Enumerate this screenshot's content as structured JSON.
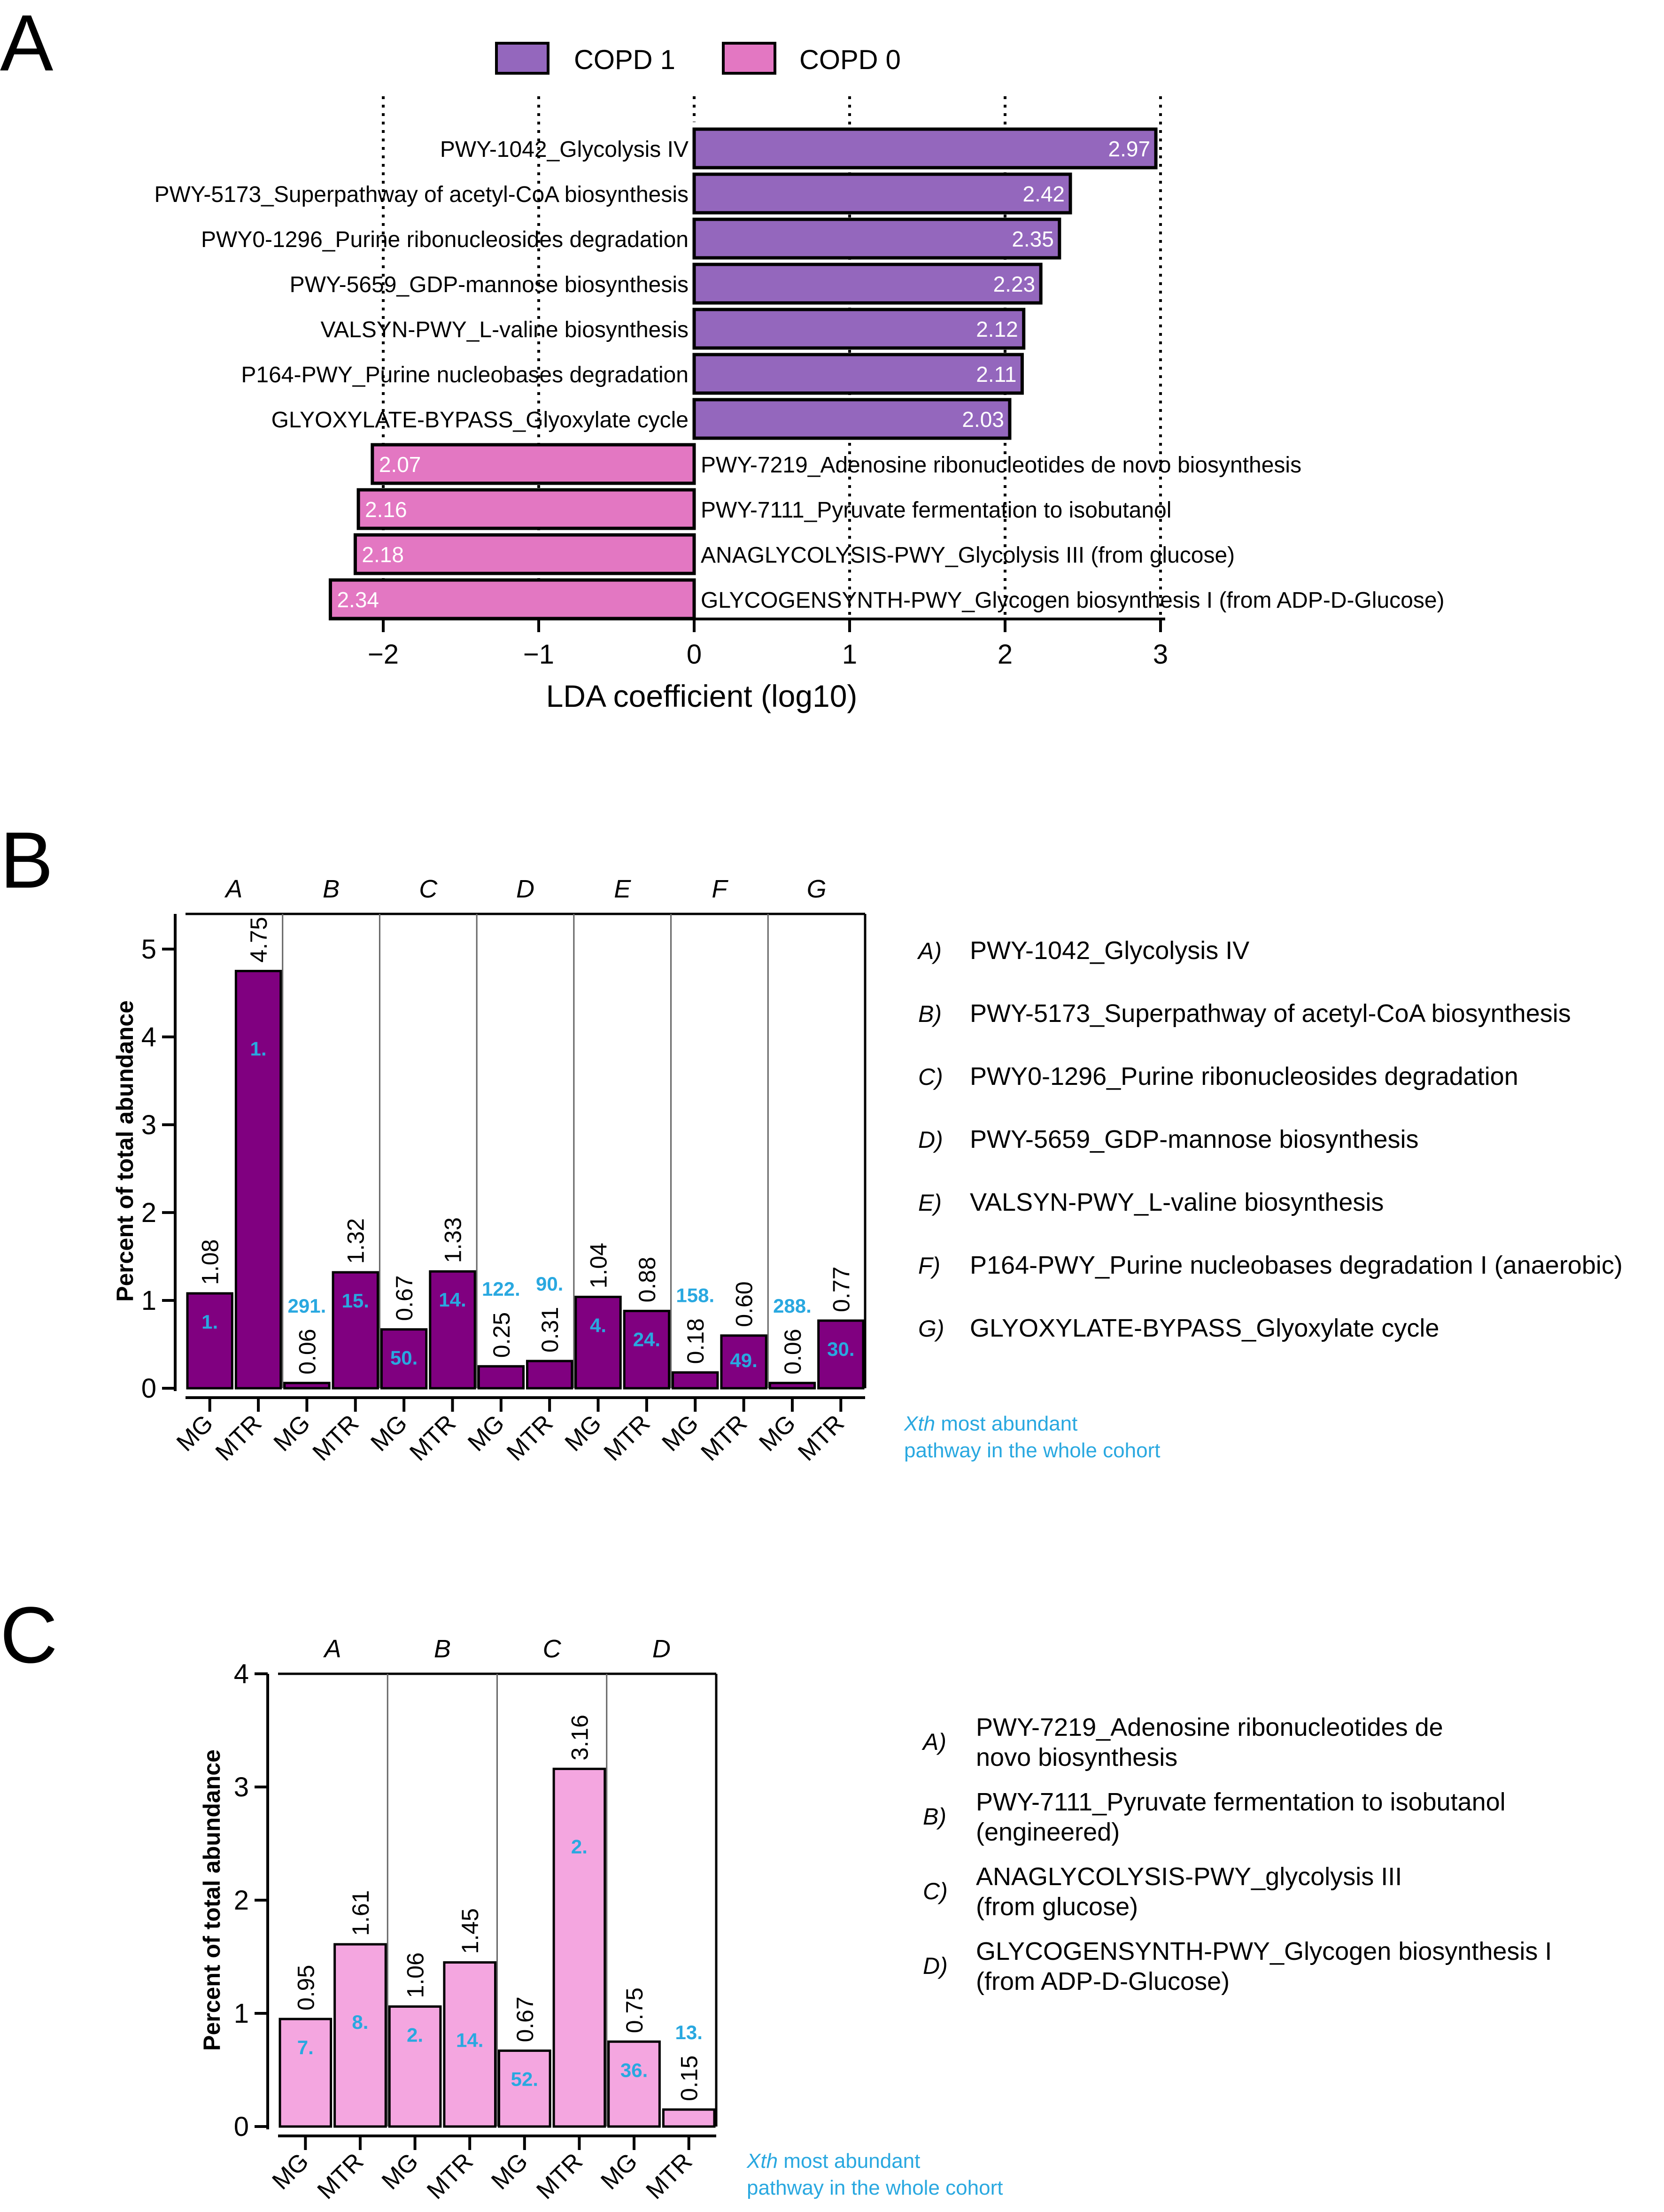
{
  "panels": {
    "a": "A",
    "b": "B",
    "c": "C"
  },
  "colors": {
    "copd1": "#9467bd",
    "copd0": "#e377c2",
    "b_bar": "#800080",
    "c_bar": "#f4a6e0",
    "rank": "#29a8e0",
    "text": "#000000"
  },
  "chart_data": [
    {
      "id": "panel-a",
      "type": "bar",
      "orientation": "horizontal",
      "xlabel": "LDA coefficient (log10)",
      "xlim": [
        -2.4,
        3.1
      ],
      "xticks": [
        -2,
        -1,
        0,
        1,
        2,
        3
      ],
      "xtick_labels": [
        "−2",
        "−1",
        "0",
        "1",
        "2",
        "3"
      ],
      "legend": {
        "position": "top",
        "entries": [
          "COPD 1",
          "COPD 0"
        ]
      },
      "bars": [
        {
          "label": "PWY-1042_Glycolysis IV",
          "value": 2.97,
          "value_label": "2.97",
          "group": "COPD 1"
        },
        {
          "label": "PWY-5173_Superpathway of acetyl-CoA biosynthesis",
          "value": 2.42,
          "value_label": "2.42",
          "group": "COPD 1"
        },
        {
          "label": "PWY0-1296_Purine ribonucleosides degradation",
          "value": 2.35,
          "value_label": "2.35",
          "group": "COPD 1"
        },
        {
          "label": "PWY-5659_GDP-mannose biosynthesis",
          "value": 2.23,
          "value_label": "2.23",
          "group": "COPD 1"
        },
        {
          "label": "VALSYN-PWY_L-valine biosynthesis",
          "value": 2.12,
          "value_label": "2.12",
          "group": "COPD 1"
        },
        {
          "label": "P164-PWY_Purine nucleobases degradation",
          "value": 2.11,
          "value_label": "2.11",
          "group": "COPD 1"
        },
        {
          "label": "GLYOXYLATE-BYPASS_Glyoxylate cycle",
          "value": 2.03,
          "value_label": "2.03",
          "group": "COPD 1"
        },
        {
          "label": "PWY-7219_Adenosine ribonucleotides de novo biosynthesis",
          "value": -2.07,
          "value_label": "2.07",
          "group": "COPD 0"
        },
        {
          "label": "PWY-7111_Pyruvate fermentation to isobutanol",
          "value": -2.16,
          "value_label": "2.16",
          "group": "COPD 0"
        },
        {
          "label": "ANAGLYCOLYSIS-PWY_Glycolysis III (from glucose)",
          "value": -2.18,
          "value_label": "2.18",
          "group": "COPD 0"
        },
        {
          "label": "GLYCOGENSYNTH-PWY_Glycogen biosynthesis I (from ADP-D-Glucose)",
          "value": -2.34,
          "value_label": "2.34",
          "group": "COPD 0"
        }
      ]
    },
    {
      "id": "panel-b",
      "type": "bar",
      "ylabel": "Percent  of total abundance",
      "ylim": [
        0,
        5.4
      ],
      "yticks": [
        0,
        1,
        2,
        3,
        4,
        5
      ],
      "groups": [
        {
          "key": "A",
          "bars": [
            {
              "cat": "MG",
              "value": 1.08,
              "label": "1.08",
              "rank": "1."
            },
            {
              "cat": "MTR",
              "value": 4.75,
              "label": "4.75",
              "rank": "1."
            }
          ]
        },
        {
          "key": "B",
          "bars": [
            {
              "cat": "MG",
              "value": 0.06,
              "label": "0.06",
              "rank": "291."
            },
            {
              "cat": "MTR",
              "value": 1.32,
              "label": "1.32",
              "rank": "15."
            }
          ]
        },
        {
          "key": "C",
          "bars": [
            {
              "cat": "MG",
              "value": 0.67,
              "label": "0.67",
              "rank": "50."
            },
            {
              "cat": "MTR",
              "value": 1.33,
              "label": "1.33",
              "rank": "14."
            }
          ]
        },
        {
          "key": "D",
          "bars": [
            {
              "cat": "MG",
              "value": 0.25,
              "label": "0.25",
              "rank": "122."
            },
            {
              "cat": "MTR",
              "value": 0.31,
              "label": "0.31",
              "rank": "90."
            }
          ]
        },
        {
          "key": "E",
          "bars": [
            {
              "cat": "MG",
              "value": 1.04,
              "label": "1.04",
              "rank": "4."
            },
            {
              "cat": "MTR",
              "value": 0.88,
              "label": "0.88",
              "rank": "24."
            }
          ]
        },
        {
          "key": "F",
          "bars": [
            {
              "cat": "MG",
              "value": 0.18,
              "label": "0.18",
              "rank": "158."
            },
            {
              "cat": "MTR",
              "value": 0.6,
              "label": "0.60",
              "rank": "49."
            }
          ]
        },
        {
          "key": "G",
          "bars": [
            {
              "cat": "MG",
              "value": 0.06,
              "label": "0.06",
              "rank": "288."
            },
            {
              "cat": "MTR",
              "value": 0.77,
              "label": "0.77",
              "rank": "30."
            }
          ]
        }
      ],
      "legend_items": [
        {
          "key": "A)",
          "text": "PWY-1042_Glycolysis IV"
        },
        {
          "key": "B)",
          "text": "PWY-5173_Superpathway of acetyl-CoA biosynthesis"
        },
        {
          "key": "C)",
          "text": "PWY0-1296_Purine ribonucleosides degradation"
        },
        {
          "key": "D)",
          "text": "PWY-5659_GDP-mannose biosynthesis"
        },
        {
          "key": "E)",
          "text": "VALSYN-PWY_L-valine biosynthesis"
        },
        {
          "key": "F)",
          "text": "P164-PWY_Purine nucleobases degradation I (anaerobic)"
        },
        {
          "key": "G)",
          "text": "GLYOXYLATE-BYPASS_Glyoxylate cycle"
        }
      ],
      "note": {
        "italic": "Xth",
        "line1": " most abundant",
        "line2": "pathway in the whole cohort"
      }
    },
    {
      "id": "panel-c",
      "type": "bar",
      "ylabel": "Percent  of total abundance",
      "ylim": [
        0,
        4
      ],
      "yticks": [
        0,
        1,
        2,
        3,
        4
      ],
      "groups": [
        {
          "key": "A",
          "bars": [
            {
              "cat": "MG",
              "value": 0.95,
              "label": "0.95",
              "rank": "7."
            },
            {
              "cat": "MTR",
              "value": 1.61,
              "label": "1.61",
              "rank": "8."
            }
          ]
        },
        {
          "key": "B",
          "bars": [
            {
              "cat": "MG",
              "value": 1.06,
              "label": "1.06",
              "rank": "2."
            },
            {
              "cat": "MTR",
              "value": 1.45,
              "label": "1.45",
              "rank": "14."
            }
          ]
        },
        {
          "key": "C",
          "bars": [
            {
              "cat": "MG",
              "value": 0.67,
              "label": "0.67",
              "rank": "52."
            },
            {
              "cat": "MTR",
              "value": 3.16,
              "label": "3.16",
              "rank": "2."
            }
          ]
        },
        {
          "key": "D",
          "bars": [
            {
              "cat": "MG",
              "value": 0.75,
              "label": "0.75",
              "rank": "36."
            },
            {
              "cat": "MTR",
              "value": 0.15,
              "label": "0.15",
              "rank": "13."
            }
          ]
        }
      ],
      "legend_items": [
        {
          "key": "A)",
          "lines": [
            "PWY-7219_Adenosine ribonucleotides de",
            "novo biosynthesis"
          ]
        },
        {
          "key": "B)",
          "lines": [
            "PWY-7111_Pyruvate fermentation to isobutanol",
            "(engineered)"
          ]
        },
        {
          "key": "C)",
          "lines": [
            "ANAGLYCOLYSIS-PWY_glycolysis III",
            "(from glucose)"
          ]
        },
        {
          "key": "D)",
          "lines": [
            "GLYCOGENSYNTH-PWY_Glycogen biosynthesis I",
            "(from ADP-D-Glucose)"
          ]
        }
      ],
      "note": {
        "italic": "Xth",
        "line1": " most abundant",
        "line2": "pathway in the whole cohort"
      }
    }
  ]
}
